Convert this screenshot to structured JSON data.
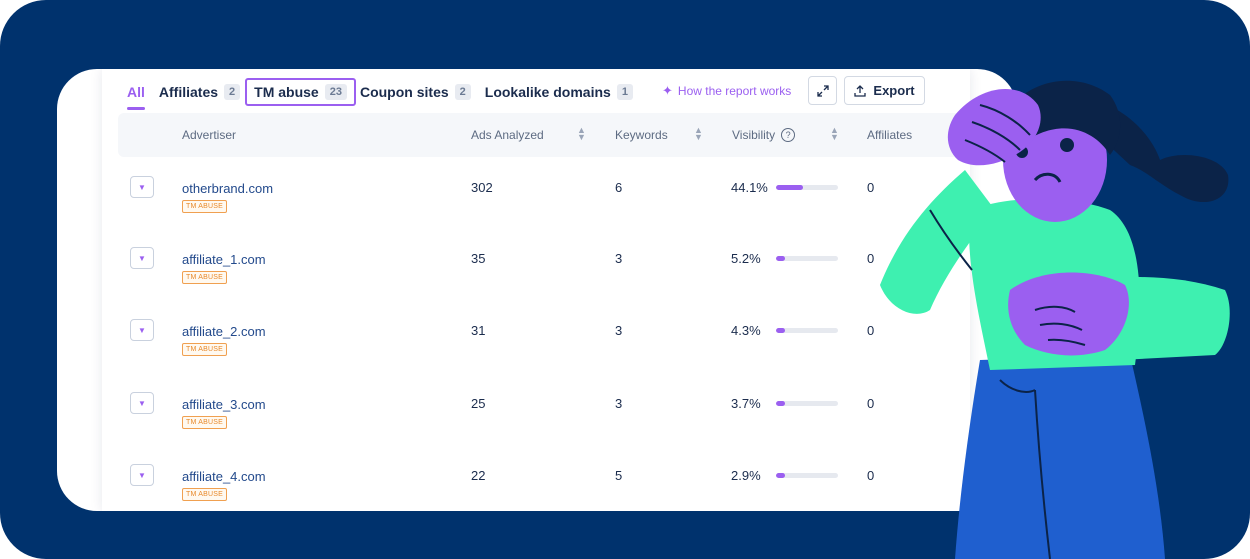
{
  "tabs": [
    {
      "label": "All",
      "count": ""
    },
    {
      "label": "Affiliates",
      "count": "2"
    },
    {
      "label": "TM abuse",
      "count": "23"
    },
    {
      "label": "Coupon sites",
      "count": "2"
    },
    {
      "label": "Lookalike domains",
      "count": "1"
    }
  ],
  "toolbar": {
    "how_label": "How the report works",
    "export_label": "Export"
  },
  "columns": {
    "advertiser": "Advertiser",
    "ads": "Ads Analyzed",
    "keywords": "Keywords",
    "visibility": "Visibility",
    "affiliates": "Affiliates",
    "help": "?"
  },
  "rows": [
    {
      "domain": "otherbrand.com",
      "badge": "TM ABUSE",
      "ads": "302",
      "keywords": "6",
      "visibility": "44.1%",
      "visibility_fraction": 0.441,
      "affiliates": "0"
    },
    {
      "domain": "affiliate_1.com",
      "badge": "TM ABUSE",
      "ads": "35",
      "keywords": "3",
      "visibility": "5.2%",
      "visibility_fraction": 0.052,
      "affiliates": "0"
    },
    {
      "domain": "affiliate_2.com",
      "badge": "TM ABUSE",
      "ads": "31",
      "keywords": "3",
      "visibility": "4.3%",
      "visibility_fraction": 0.043,
      "affiliates": "0"
    },
    {
      "domain": "affiliate_3.com",
      "badge": "TM ABUSE",
      "ads": "25",
      "keywords": "3",
      "visibility": "3.7%",
      "visibility_fraction": 0.037,
      "affiliates": "0"
    },
    {
      "domain": "affiliate_4.com",
      "badge": "TM ABUSE",
      "ads": "22",
      "keywords": "5",
      "visibility": "2.9%",
      "visibility_fraction": 0.029,
      "affiliates": "0"
    }
  ],
  "colors": {
    "background": "#00326d",
    "accent": "#9b5ff0",
    "badge": "#e88a2c",
    "character_skin": "#9b5ff0",
    "character_shirt": "#3ef0b0",
    "character_pants": "#1f5fcf",
    "character_hair": "#0b2348"
  },
  "icons": {
    "sparkle": "sparkle-icon",
    "expand": "expand-icon",
    "export": "upload-icon",
    "caret": "caret-down-icon",
    "sort": "sort-icon"
  }
}
